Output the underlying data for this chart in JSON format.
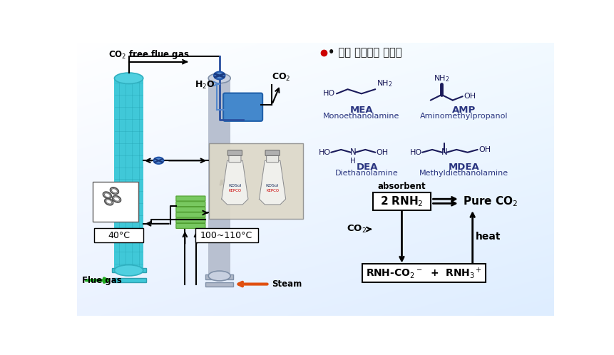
{
  "title_text": "• 주요 아민계열 흥수제",
  "left_panel": {
    "co2_free_label": "CO$_2$ free flue gas",
    "co2_label": "CO$_2$",
    "h2o_label": "H$_2$O",
    "flue_gas_label": "Flue gas",
    "steam_label": "Steam",
    "temp1_label": "40°C",
    "temp2_label": "100~110°C",
    "absorber_color": "#40c8d8",
    "stripper_color": "#b8c0d0",
    "hex_color": "#78c860",
    "condenser_color": "#4488cc"
  },
  "right_panel": {
    "mea_name": "MEA",
    "mea_full": "Monoethanolamine",
    "amp_name": "AMP",
    "amp_full": "Aminomethylpropanol",
    "dea_name": "DEA",
    "dea_full": "Diethanolamine",
    "mdea_name": "MDEA",
    "mdea_full": "Methyldiethanolamine",
    "absorbent_label": "absorbent",
    "rnh2_label": "2 RNH$_2$",
    "pure_co2_label": "Pure CO$_2$",
    "co2_label": "CO$_2$",
    "heat_label": "heat",
    "product_label": "RNH-CO$_2$$^-$  +  RNH$_3$$^+$",
    "chem_color": "#1a1a5a",
    "label_color": "#2a3580"
  }
}
